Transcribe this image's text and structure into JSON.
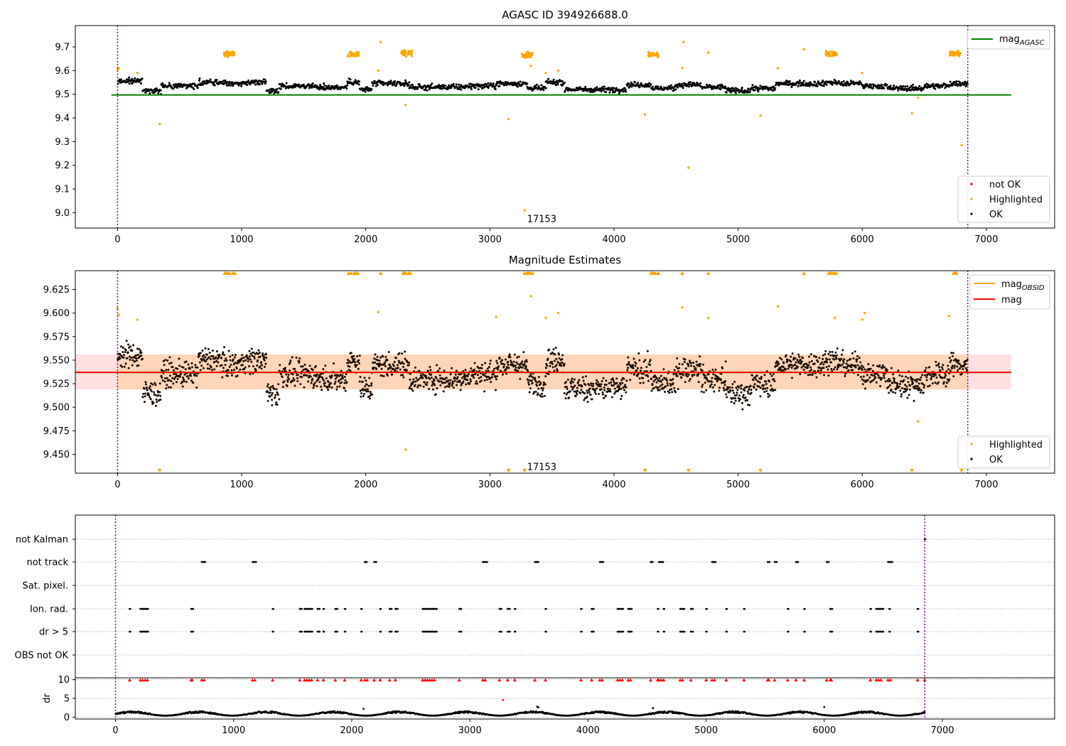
{
  "chart_data": [
    {
      "type": "scatter",
      "title": "AGASC ID 394926688.0",
      "xlim": [
        -340,
        7550
      ],
      "ylim": [
        8.935,
        9.79
      ],
      "x_ticks": [
        0,
        1000,
        2000,
        3000,
        4000,
        5000,
        6000,
        7000
      ],
      "y_ticks": [
        9.0,
        9.1,
        9.2,
        9.3,
        9.4,
        9.5,
        9.6,
        9.7
      ],
      "y_tick_labels": [
        "9.0",
        "9.1",
        "9.2",
        "9.3",
        "9.4",
        "9.5",
        "9.6",
        "9.7"
      ],
      "grid": false,
      "obsid_label": {
        "text": "17153",
        "x": 3300,
        "y": 8.975
      },
      "obsid_boundaries_x": [
        0,
        6850
      ],
      "mag_agasc": {
        "value": 9.497,
        "x_range": [
          -50,
          7200
        ],
        "color": "#008000"
      },
      "legend_upper": {
        "placement": "upper right",
        "entries": [
          {
            "label": "mag",
            "subscript": "AGASC",
            "color": "#008000"
          }
        ]
      },
      "legend_lower": {
        "placement": "lower right",
        "entries": [
          {
            "label": "not OK",
            "color": "#ff0000"
          },
          {
            "label": "Highlighted",
            "color": "#ffa500"
          },
          {
            "label": "OK",
            "color": "#000000"
          }
        ]
      },
      "ok_series": {
        "color": "#000000",
        "x_range": [
          0,
          6850
        ],
        "segments": [
          [
            0,
            200,
            9.555
          ],
          [
            200,
            350,
            9.515
          ],
          [
            350,
            650,
            9.535
          ],
          [
            650,
            850,
            9.55
          ],
          [
            850,
            1000,
            9.545
          ],
          [
            1000,
            1200,
            9.55
          ],
          [
            1200,
            1300,
            9.515
          ],
          [
            1300,
            1600,
            9.535
          ],
          [
            1600,
            1850,
            9.53
          ],
          [
            1850,
            1950,
            9.55
          ],
          [
            1950,
            2050,
            9.52
          ],
          [
            2050,
            2350,
            9.545
          ],
          [
            2350,
            2600,
            9.53
          ],
          [
            2600,
            2800,
            9.53
          ],
          [
            2800,
            3050,
            9.535
          ],
          [
            3050,
            3300,
            9.545
          ],
          [
            3300,
            3450,
            9.525
          ],
          [
            3450,
            3600,
            9.55
          ],
          [
            3600,
            3800,
            9.52
          ],
          [
            3800,
            4100,
            9.52
          ],
          [
            4100,
            4300,
            9.54
          ],
          [
            4300,
            4500,
            9.525
          ],
          [
            4500,
            4700,
            9.54
          ],
          [
            4700,
            4900,
            9.53
          ],
          [
            4900,
            5100,
            9.515
          ],
          [
            5100,
            5300,
            9.525
          ],
          [
            5300,
            5500,
            9.545
          ],
          [
            5500,
            5700,
            9.545
          ],
          [
            5700,
            5800,
            9.55
          ],
          [
            5800,
            6000,
            9.545
          ],
          [
            6000,
            6200,
            9.535
          ],
          [
            6200,
            6500,
            9.525
          ],
          [
            6500,
            6700,
            9.535
          ],
          [
            6700,
            6850,
            9.545
          ]
        ]
      },
      "highlighted_clusters": [
        [
          900,
          9.672
        ],
        [
          1900,
          9.668
        ],
        [
          2330,
          9.675
        ],
        [
          3300,
          9.665
        ],
        [
          4320,
          9.668
        ],
        [
          5750,
          9.672
        ],
        [
          6750,
          9.672
        ]
      ],
      "highlighted_points": [
        [
          0,
          9.605
        ],
        [
          10,
          9.61
        ],
        [
          160,
          9.59
        ],
        [
          340,
          9.375
        ],
        [
          2100,
          9.6
        ],
        [
          2120,
          9.72
        ],
        [
          2320,
          9.455
        ],
        [
          3150,
          9.395
        ],
        [
          3280,
          9.01
        ],
        [
          3330,
          9.62
        ],
        [
          3450,
          9.59
        ],
        [
          3550,
          9.6
        ],
        [
          4250,
          9.415
        ],
        [
          4550,
          9.61
        ],
        [
          4560,
          9.72
        ],
        [
          4600,
          9.19
        ],
        [
          4760,
          9.675
        ],
        [
          5180,
          9.41
        ],
        [
          5320,
          9.61
        ],
        [
          5530,
          9.69
        ],
        [
          6000,
          9.59
        ],
        [
          6400,
          9.42
        ],
        [
          6450,
          9.485
        ],
        [
          6800,
          9.285
        ]
      ]
    },
    {
      "type": "scatter",
      "title": "Magnitude Estimates",
      "xlim": [
        -340,
        7550
      ],
      "ylim": [
        9.43,
        9.645
      ],
      "x_ticks": [
        0,
        1000,
        2000,
        3000,
        4000,
        5000,
        6000,
        7000
      ],
      "y_ticks": [
        9.45,
        9.475,
        9.5,
        9.525,
        9.55,
        9.575,
        9.6,
        9.625
      ],
      "y_tick_labels": [
        "9.450",
        "9.475",
        "9.500",
        "9.525",
        "9.550",
        "9.575",
        "9.600",
        "9.625"
      ],
      "grid": false,
      "obsid_label": {
        "text": "17153",
        "x": 3300,
        "y": 9.437
      },
      "obsid_boundaries_x": [
        0,
        6850
      ],
      "mag_obsid": {
        "value": 9.537,
        "x_range": [
          0,
          6850
        ],
        "color": "#ffa500"
      },
      "mag": {
        "value": 9.537,
        "band": [
          9.519,
          9.556
        ],
        "x_range": [
          -340,
          7200
        ],
        "color": "#ff0000"
      },
      "legend_upper": {
        "placement": "upper right",
        "entries": [
          {
            "label": "mag",
            "subscript": "OBSID",
            "color": "#ffa500"
          },
          {
            "label": "mag",
            "subscript": "",
            "color": "#ff0000"
          }
        ]
      },
      "legend_lower": {
        "placement": "lower right",
        "entries": [
          {
            "label": "Highlighted",
            "color": "#ffa500"
          },
          {
            "label": "OK",
            "color": "#000000"
          }
        ]
      },
      "top_markers_x": [
        900,
        1900,
        2120,
        2330,
        3300,
        4320,
        4550,
        4760,
        5530,
        5750,
        6750
      ],
      "bottom_markers_x": [
        340,
        3150,
        3280,
        4250,
        4600,
        5180,
        6400,
        6800
      ],
      "highlighted_points": [
        [
          0,
          9.605
        ],
        [
          10,
          9.598
        ],
        [
          160,
          9.593
        ],
        [
          2100,
          9.601
        ],
        [
          2320,
          9.455
        ],
        [
          3050,
          9.596
        ],
        [
          3330,
          9.618
        ],
        [
          3450,
          9.595
        ],
        [
          3550,
          9.6
        ],
        [
          4550,
          9.606
        ],
        [
          4760,
          9.595
        ],
        [
          5320,
          9.607
        ],
        [
          5780,
          9.595
        ],
        [
          6000,
          9.593
        ],
        [
          6020,
          9.6
        ],
        [
          6450,
          9.485
        ],
        [
          6700,
          9.597
        ]
      ]
    },
    {
      "type": "scatter",
      "title": "",
      "xlim": [
        -340,
        7950
      ],
      "categories": [
        "not Kalman",
        "not track",
        "Sat. pixel.",
        "Ion. rad.",
        "dr > 5",
        "OBS not OK"
      ],
      "obsid_boundaries_x": [
        0,
        6850
      ],
      "grid": "dotted horizontal",
      "flags": {
        "not Kalman": [
          [
            6850,
            6860
          ]
        ],
        "not track": [
          [
            730,
            760
          ],
          [
            1160,
            1190
          ],
          [
            2110,
            2130
          ],
          [
            2190,
            2210
          ],
          [
            3110,
            3150
          ],
          [
            3550,
            3580
          ],
          [
            4100,
            4130
          ],
          [
            4530,
            4550
          ],
          [
            4600,
            4640
          ],
          [
            5050,
            5080
          ],
          [
            5520,
            5540
          ],
          [
            5580,
            5600
          ],
          [
            5760,
            5780
          ],
          [
            6020,
            6040
          ],
          [
            6540,
            6580
          ]
        ],
        "Sat. pixel.": [],
        "Ion. rad.": [
          [
            120,
            130
          ],
          [
            210,
            280
          ],
          [
            640,
            660
          ],
          [
            1330,
            1340
          ],
          [
            1560,
            1580
          ],
          [
            1600,
            1670
          ],
          [
            1710,
            1730
          ],
          [
            1760,
            1770
          ],
          [
            1860,
            1880
          ],
          [
            1940,
            1950
          ],
          [
            2080,
            2090
          ],
          [
            2240,
            2250
          ],
          [
            2320,
            2340
          ],
          [
            2370,
            2390
          ],
          [
            2600,
            2720
          ],
          [
            2910,
            2930
          ],
          [
            3250,
            3270
          ],
          [
            3320,
            3340
          ],
          [
            3380,
            3390
          ],
          [
            3640,
            3650
          ],
          [
            3940,
            3950
          ],
          [
            4030,
            4050
          ],
          [
            4250,
            4300
          ],
          [
            4340,
            4370
          ],
          [
            4590,
            4600
          ],
          [
            4640,
            4650
          ],
          [
            4780,
            4820
          ],
          [
            4870,
            4890
          ],
          [
            5000,
            5010
          ],
          [
            5170,
            5180
          ],
          [
            5320,
            5330
          ],
          [
            5690,
            5700
          ],
          [
            5830,
            5840
          ],
          [
            6050,
            6070
          ],
          [
            6390,
            6400
          ],
          [
            6440,
            6500
          ],
          [
            6550,
            6560
          ],
          [
            6790,
            6800
          ]
        ],
        "dr > 5": [
          [
            120,
            130
          ],
          [
            210,
            280
          ],
          [
            640,
            660
          ],
          [
            1330,
            1340
          ],
          [
            1560,
            1580
          ],
          [
            1600,
            1670
          ],
          [
            1710,
            1730
          ],
          [
            1760,
            1770
          ],
          [
            1860,
            1880
          ],
          [
            1940,
            1950
          ],
          [
            2080,
            2090
          ],
          [
            2240,
            2250
          ],
          [
            2320,
            2340
          ],
          [
            2370,
            2390
          ],
          [
            2600,
            2720
          ],
          [
            2910,
            2930
          ],
          [
            3250,
            3270
          ],
          [
            3320,
            3340
          ],
          [
            3380,
            3390
          ],
          [
            3640,
            3650
          ],
          [
            3940,
            3950
          ],
          [
            4030,
            4050
          ],
          [
            4250,
            4300
          ],
          [
            4340,
            4370
          ],
          [
            4590,
            4600
          ],
          [
            4640,
            4650
          ],
          [
            4780,
            4820
          ],
          [
            4870,
            4890
          ],
          [
            5000,
            5010
          ],
          [
            5170,
            5180
          ],
          [
            5320,
            5330
          ],
          [
            5690,
            5700
          ],
          [
            5830,
            5840
          ],
          [
            6050,
            6070
          ],
          [
            6390,
            6400
          ],
          [
            6440,
            6500
          ],
          [
            6550,
            6560
          ],
          [
            6790,
            6800
          ]
        ],
        "OBS not OK": []
      }
    },
    {
      "type": "scatter",
      "title": "",
      "ylabel": "dr",
      "xlim": [
        -340,
        7950
      ],
      "ylim": [
        -0.5,
        10.5
      ],
      "x_ticks": [
        0,
        1000,
        2000,
        3000,
        4000,
        5000,
        6000,
        7000
      ],
      "y_ticks": [
        0,
        5,
        10
      ],
      "y_tick_labels": [
        "0",
        "5",
        "10"
      ],
      "grid": "dotted horizontal",
      "obsid_boundaries_x": [
        0,
        6850
      ],
      "dr_series": {
        "color": "#000000",
        "x_range": [
          0,
          6850
        ],
        "baseline": [
          0.4,
          1.6
        ]
      },
      "clipped_markers_x": [
        120,
        210,
        230,
        250,
        270,
        640,
        650,
        730,
        750,
        1160,
        1180,
        1330,
        1560,
        1600,
        1620,
        1640,
        1660,
        1710,
        1760,
        1860,
        1940,
        2080,
        2110,
        2130,
        2190,
        2240,
        2320,
        2370,
        2600,
        2620,
        2640,
        2660,
        2680,
        2700,
        2910,
        3110,
        3130,
        3250,
        3320,
        3380,
        3550,
        3640,
        3940,
        4030,
        4100,
        4120,
        4250,
        4270,
        4290,
        4340,
        4360,
        4530,
        4590,
        4600,
        4620,
        4640,
        4780,
        4800,
        4870,
        5000,
        5050,
        5070,
        5170,
        5320,
        5520,
        5530,
        5580,
        5690,
        5760,
        5830,
        6020,
        6050,
        6060,
        6390,
        6440,
        6460,
        6480,
        6540,
        6560,
        6790,
        6850
      ],
      "outliers": [
        [
          3280,
          4.6
        ],
        [
          3570,
          2.8
        ],
        [
          3580,
          2.6
        ],
        [
          2100,
          2.2
        ],
        [
          4550,
          2.4
        ],
        [
          6000,
          2.7
        ]
      ]
    }
  ]
}
